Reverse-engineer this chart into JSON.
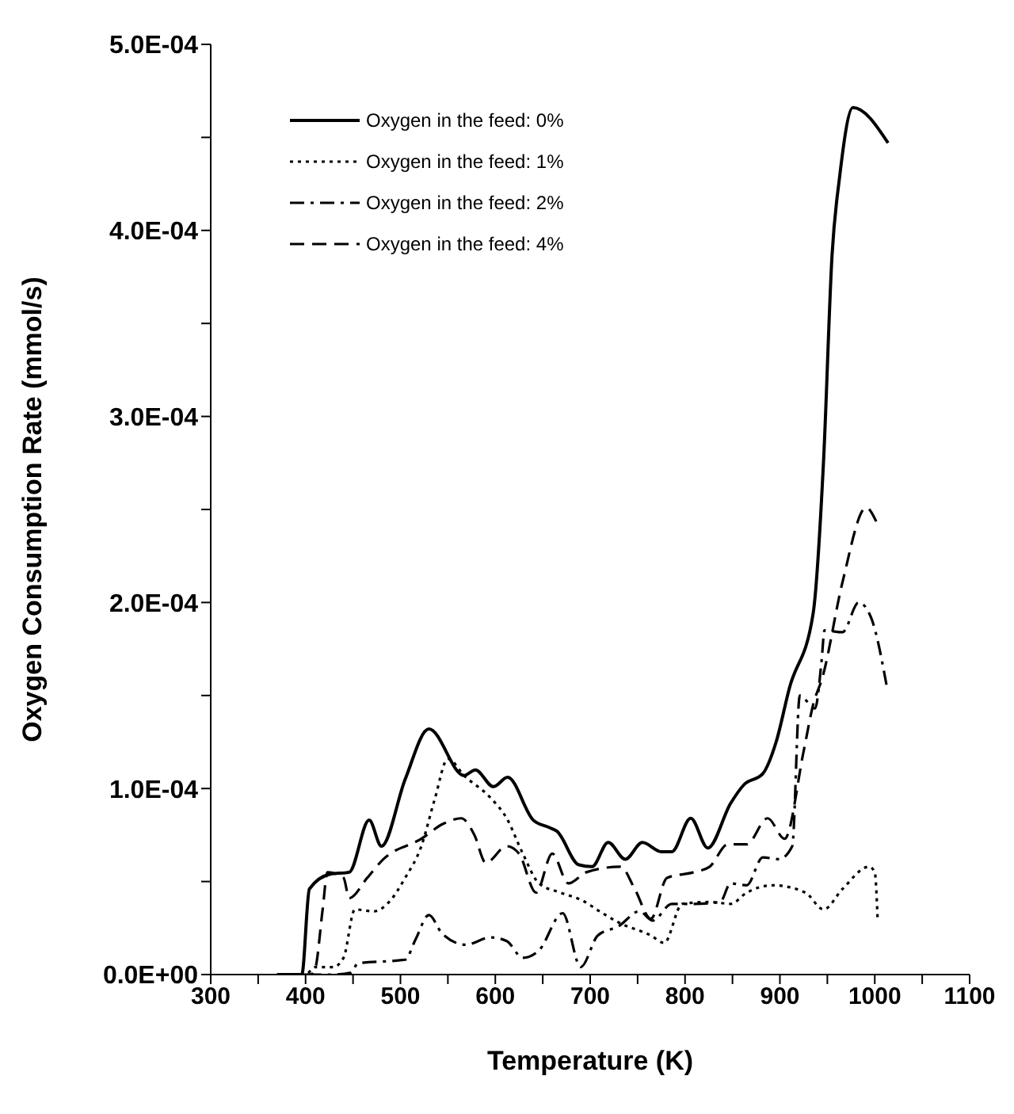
{
  "chart_data": {
    "type": "line",
    "xlabel": "Temperature (K)",
    "ylabel": "Oxygen Consumption Rate (mmol/s)",
    "xlim": [
      300,
      1100
    ],
    "xticks": [
      300,
      {
        "value": 350,
        "label": null
      },
      400,
      {
        "value": 450,
        "label": null
      },
      500,
      {
        "value": 550,
        "label": null
      },
      600,
      {
        "value": 650,
        "label": null
      },
      700,
      {
        "value": 750,
        "label": null
      },
      800,
      {
        "value": 850,
        "label": null
      },
      900,
      {
        "value": 950,
        "label": null
      },
      1000,
      {
        "value": 1050,
        "label": null
      },
      1100
    ],
    "ylim": [
      0,
      0.0005
    ],
    "yticks": [
      {
        "value": 0,
        "label": "0.0E+00"
      },
      {
        "value": 5e-05,
        "label": null
      },
      {
        "value": 0.0001,
        "label": "1.0E-04"
      },
      {
        "value": 0.00015,
        "label": null
      },
      {
        "value": 0.0002,
        "label": "2.0E-04"
      },
      {
        "value": 0.00025,
        "label": null
      },
      {
        "value": 0.0003,
        "label": "3.0E-04"
      },
      {
        "value": 0.00035,
        "label": null
      },
      {
        "value": 0.0004,
        "label": "4.0E-04"
      },
      {
        "value": 0.00045,
        "label": null
      },
      {
        "value": 0.0005,
        "label": "5.0E-04"
      }
    ],
    "grid": false,
    "legend": "top left",
    "marker": "none",
    "series": [
      {
        "name": "Oxygen in the feed: 0%",
        "color": "#000000",
        "line_style": "solid",
        "x": [
          370,
          396,
          404,
          426,
          446,
          467,
          480,
          505,
          530,
          567,
          579,
          598,
          613,
          640,
          657,
          665,
          688,
          702,
          719,
          737,
          755,
          775,
          786,
          806,
          824,
          848,
          862,
          882,
          896,
          910,
          935,
          946,
          955,
          963,
          977,
          1014
        ],
        "values": [
          0,
          0,
          4.6e-05,
          5.4e-05,
          5.5e-05,
          8.3e-05,
          6.9e-05,
          0.000105,
          0.000132,
          0.000107,
          0.00011,
          0.000101,
          0.000106,
          8.3e-05,
          7.9e-05,
          7.7e-05,
          5.9e-05,
          5.8e-05,
          7.1e-05,
          6.2e-05,
          7.1e-05,
          6.6e-05,
          6.6e-05,
          8.4e-05,
          6.8e-05,
          9.2e-05,
          0.000102,
          0.000108,
          0.000125,
          0.000154,
          0.000194,
          0.000276,
          0.000387,
          0.000429,
          0.000466,
          0.000447
        ]
      },
      {
        "name": "Oxygen in the feed: 1%",
        "color": "#000000",
        "line_style": "dotted",
        "x": [
          370,
          400,
          410,
          429,
          440,
          452,
          472,
          488,
          505,
          522,
          536,
          550,
          567,
          595,
          612,
          629,
          646,
          669,
          691,
          713,
          730,
          764,
          778,
          797,
          826,
          848,
          865,
          893,
          927,
          946,
          966,
          994,
          1000,
          1003
        ],
        "values": [
          0,
          0,
          4e-06,
          4e-06,
          9e-06,
          3.5e-05,
          3.4e-05,
          3.9e-05,
          5.2e-05,
          6.9e-05,
          9.4e-05,
          0.000116,
          0.000107,
          9.5e-05,
          8.4e-05,
          6.5e-05,
          4.9e-05,
          4.4e-05,
          4e-05,
          3.3e-05,
          2.8e-05,
          2.1e-05,
          1.7e-05,
          3.8e-05,
          3.9e-05,
          3.8e-05,
          4.4e-05,
          4.8e-05,
          4.4e-05,
          3.5e-05,
          4.6e-05,
          5.8e-05,
          5.5e-05,
          3e-05
        ]
      },
      {
        "name": "Oxygen in the feed: 2%",
        "color": "#000000",
        "line_style": "dashdot",
        "x": [
          370,
          430,
          448,
          455,
          505,
          516,
          530,
          544,
          569,
          595,
          612,
          629,
          646,
          671,
          690,
          708,
          730,
          752,
          766,
          786,
          809,
          837,
          848,
          865,
          882,
          899,
          913,
          921,
          937,
          944,
          947,
          966,
          983,
          996,
          1013
        ],
        "values": [
          0,
          0,
          1e-06,
          6e-06,
          8e-06,
          1.9e-05,
          3.2e-05,
          2.2e-05,
          1.6e-05,
          2e-05,
          1.8e-05,
          9e-06,
          1.3e-05,
          3.3e-05,
          4e-06,
          2.1e-05,
          2.6e-05,
          3.4e-05,
          2.9e-05,
          3.8e-05,
          3.8e-05,
          3.9e-05,
          4.9e-05,
          4.8e-05,
          6.3e-05,
          6.2e-05,
          6.9e-05,
          0.00015,
          0.000143,
          0.000169,
          0.000185,
          0.000184,
          0.0002,
          0.000192,
          0.000154
        ]
      },
      {
        "name": "Oxygen in the feed: 4%",
        "color": "#000000",
        "line_style": "dashed",
        "x": [
          370,
          405,
          410,
          418,
          423,
          440,
          446,
          465,
          482,
          522,
          545,
          564,
          578,
          590,
          612,
          625,
          643,
          660,
          677,
          696,
          732,
          747,
          764,
          781,
          809,
          826,
          845,
          865,
          887,
          905,
          925,
          935,
          945,
          966,
          991,
          1002
        ],
        "values": [
          0,
          0,
          3e-06,
          3.5e-05,
          5.5e-05,
          5.2e-05,
          4.1e-05,
          5.2e-05,
          6.2e-05,
          7.3e-05,
          8.1e-05,
          8.4e-05,
          7.5e-05,
          6e-05,
          6.9e-05,
          6.5e-05,
          4.4e-05,
          6.5e-05,
          4.9e-05,
          5.5e-05,
          5.8e-05,
          4.6e-05,
          3e-05,
          5.2e-05,
          5.5e-05,
          5.8e-05,
          7e-05,
          7e-05,
          8.4e-05,
          7.3e-05,
          0.00012,
          0.000145,
          0.00016,
          0.000211,
          0.000251,
          0.000243
        ]
      }
    ]
  }
}
